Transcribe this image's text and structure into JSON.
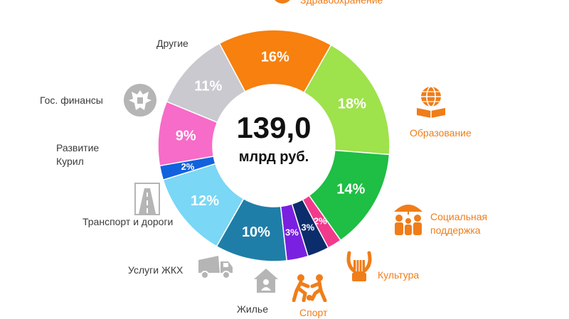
{
  "chart_data": {
    "type": "pie",
    "categories": [
      "Здравоохранение",
      "Образование",
      "Социальная поддержка",
      "Культура",
      "Спорт",
      "Жилье",
      "Услуги ЖКХ",
      "Транспорт и дороги",
      "Развитие Курил",
      "Гос. финансы",
      "Другие"
    ],
    "values": [
      16,
      18,
      14,
      2,
      3,
      3,
      10,
      12,
      2,
      9,
      11
    ],
    "value_labels": [
      "16%",
      "18%",
      "14%",
      "2%",
      "3%",
      "3%",
      "10%",
      "12%",
      "2%",
      "9%",
      "11%"
    ],
    "colors": [
      "#f7800e",
      "#9ee24c",
      "#1fbe44",
      "#f23a8c",
      "#0c2d6b",
      "#7a20e0",
      "#1f7ea8",
      "#7ad7f5",
      "#1262de",
      "#f66cc8",
      "#c9c9cf"
    ],
    "center_value": "139,0",
    "center_unit": "млрд руб."
  },
  "labels": {
    "healthcare": "Здравоохранение",
    "education": "Образование",
    "social_1": "Социальная",
    "social_2": "поддержка",
    "culture": "Культура",
    "sport": "Спорт",
    "housing": "Жилье",
    "utilities": "Услуги ЖКХ",
    "transport": "Транспорт и дороги",
    "kuril_1": "Развитие",
    "kuril_2": "Курил",
    "finance": "Гос. финансы",
    "other": "Другие"
  },
  "icons": {
    "healthcare": "health-icon",
    "education": "globe-book-icon",
    "social": "family-umbrella-icon",
    "culture": "lyre-icon",
    "sport": "footballers-icon",
    "housing": "house-icon",
    "utilities": "garbage-truck-icon",
    "transport": "road-sign-icon",
    "finance": "coat-of-arms-icon"
  }
}
